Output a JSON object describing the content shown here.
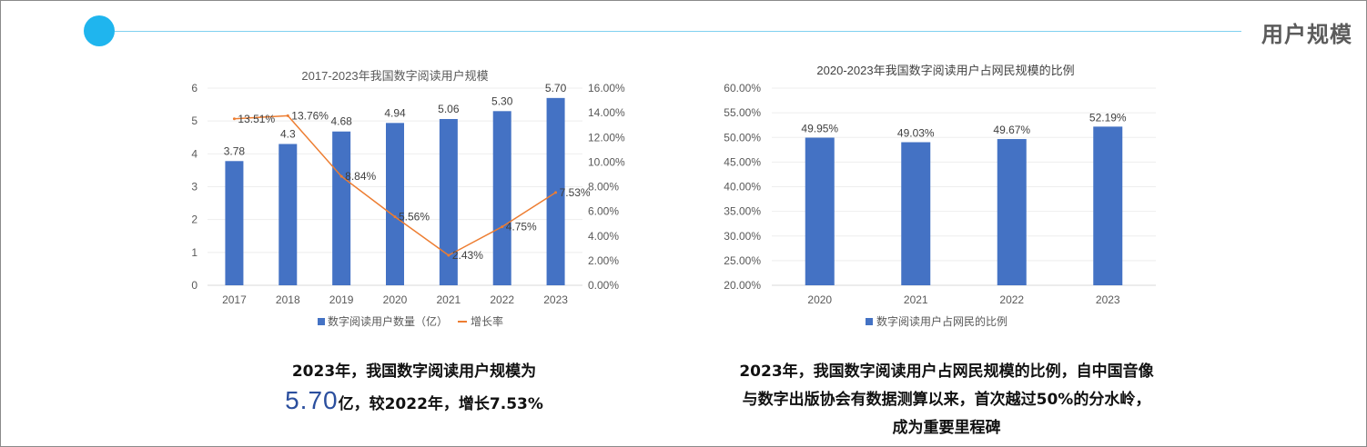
{
  "header": {
    "title": "用户规模",
    "accent_color": "#1fb5ee"
  },
  "chart_data": [
    {
      "type": "bar+line",
      "title": "2017-2023年我国数字阅读用户规模",
      "categories": [
        "2017",
        "2018",
        "2019",
        "2020",
        "2021",
        "2022",
        "2023"
      ],
      "series": [
        {
          "name": "数字阅读用户数量（亿）",
          "type": "bar",
          "axis": "left",
          "values": [
            3.78,
            4.3,
            4.68,
            4.94,
            5.06,
            5.3,
            5.7
          ],
          "labels": [
            "3.78",
            "4.3",
            "4.68",
            "4.94",
            "5.06",
            "5.30",
            "5.70"
          ],
          "color": "#4472c4"
        },
        {
          "name": "增长率",
          "type": "line",
          "axis": "right",
          "values": [
            13.51,
            13.76,
            8.84,
            5.56,
            2.43,
            4.75,
            7.53
          ],
          "labels": [
            "13.51%",
            "13.76%",
            "8.84%",
            "5.56%",
            "2.43%",
            "4.75%",
            "7.53%"
          ],
          "color": "#ed7d31"
        }
      ],
      "y_left": {
        "min": 0,
        "max": 6,
        "ticks": [
          "0",
          "1",
          "2",
          "3",
          "4",
          "5",
          "6"
        ]
      },
      "y_right": {
        "min": 0,
        "max": 16,
        "ticks": [
          "0.00%",
          "2.00%",
          "4.00%",
          "6.00%",
          "8.00%",
          "10.00%",
          "12.00%",
          "14.00%",
          "16.00%"
        ]
      },
      "legend": "bottom"
    },
    {
      "type": "bar",
      "title": "2020-2023年我国数字阅读用户占网民规模的比例",
      "categories": [
        "2020",
        "2021",
        "2022",
        "2023"
      ],
      "series": [
        {
          "name": "数字阅读用户占网民的比例",
          "type": "bar",
          "values": [
            49.95,
            49.03,
            49.67,
            52.19
          ],
          "labels": [
            "49.95%",
            "49.03%",
            "49.67%",
            "52.19%"
          ],
          "color": "#4472c4"
        }
      ],
      "y": {
        "min": 20,
        "max": 60,
        "ticks": [
          "20.00%",
          "25.00%",
          "30.00%",
          "35.00%",
          "40.00%",
          "45.00%",
          "50.00%",
          "55.00%",
          "60.00%"
        ]
      },
      "legend": "bottom"
    }
  ],
  "captions": {
    "left_line1": "2023年，我国数字阅读用户规模为",
    "left_big": "5.70",
    "left_line2_rest": "亿，较2022年，增长7.53%",
    "right_line1": "2023年，我国数字阅读用户占网民规模的比例，自中国音像",
    "right_line2": "与数字出版协会有数据测算以来，首次越过50%的分水岭，",
    "right_line3": "成为重要里程碑"
  }
}
